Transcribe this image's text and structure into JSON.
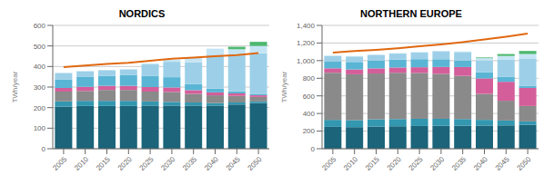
{
  "chart_data": [
    {
      "type": "bar",
      "title": "NORDICS",
      "ylabel": "TWh/year",
      "stacked": true,
      "grid": true,
      "categories": [
        "2005",
        "2010",
        "2015",
        "2020",
        "2025",
        "2030",
        "2035",
        "2040",
        "2045",
        "2050"
      ],
      "ylim": [
        0,
        600
      ],
      "yticks": [
        0,
        100,
        200,
        300,
        400,
        500,
        600
      ],
      "series": [
        {
          "color": "#1b647a",
          "values": [
            205,
            208,
            208,
            208,
            210,
            210,
            210,
            210,
            215,
            222
          ]
        },
        {
          "color": "#3397b0",
          "values": [
            25,
            25,
            25,
            25,
            20,
            18,
            15,
            12,
            10,
            8
          ]
        },
        {
          "color": "#8a8a8a",
          "values": [
            48,
            48,
            53,
            53,
            48,
            48,
            42,
            38,
            32,
            22
          ]
        },
        {
          "color": "#d45e9a",
          "values": [
            18,
            20,
            20,
            20,
            22,
            22,
            18,
            14,
            12,
            8
          ]
        },
        {
          "color": "#5ab5d5",
          "values": [
            42,
            48,
            48,
            52,
            55,
            50,
            30,
            18,
            10,
            5
          ]
        },
        {
          "color": "#9dd0e8",
          "values": [
            30,
            28,
            28,
            28,
            55,
            75,
            105,
            165,
            175,
            200
          ]
        },
        {
          "color": "#c5e5f5",
          "values": [
            0,
            0,
            0,
            0,
            5,
            10,
            25,
            30,
            30,
            35
          ]
        },
        {
          "color": "#4db870",
          "values": [
            0,
            0,
            0,
            0,
            0,
            0,
            0,
            0,
            12,
            20
          ]
        },
        {
          "type": "line",
          "color": "#e06810",
          "values": [
            397,
            405,
            412,
            418,
            428,
            438,
            443,
            450,
            456,
            465
          ]
        }
      ]
    },
    {
      "type": "bar",
      "title": "NORTHERN EUROPE",
      "ylabel": "TWh/year",
      "stacked": true,
      "grid": true,
      "categories": [
        "2005",
        "2010",
        "2015",
        "2020",
        "2025",
        "2030",
        "2035",
        "2040",
        "2045",
        "2050"
      ],
      "ylim": [
        0,
        1400
      ],
      "yticks": [
        0,
        200,
        400,
        600,
        800,
        {
          "value": 1000,
          "label": "1,000"
        },
        {
          "value": 1200,
          "label": "1,200"
        },
        {
          "value": 1400,
          "label": "1,400"
        }
      ],
      "series": [
        {
          "color": "#1b647a",
          "values": [
            248,
            245,
            252,
            255,
            258,
            260,
            262,
            263,
            265,
            270
          ]
        },
        {
          "color": "#3397b0",
          "values": [
            80,
            80,
            82,
            82,
            82,
            80,
            75,
            65,
            55,
            40
          ]
        },
        {
          "color": "#8a8a8a",
          "values": [
            535,
            520,
            520,
            525,
            520,
            510,
            490,
            295,
            225,
            175
          ]
        },
        {
          "color": "#d45e9a",
          "values": [
            50,
            55,
            58,
            60,
            65,
            78,
            100,
            175,
            215,
            205
          ]
        },
        {
          "color": "#5ab5d5",
          "values": [
            80,
            85,
            88,
            90,
            92,
            88,
            75,
            70,
            58,
            25
          ]
        },
        {
          "color": "#9dd0e8",
          "values": [
            60,
            62,
            65,
            68,
            75,
            90,
            95,
            135,
            195,
            310
          ]
        },
        {
          "color": "#c5e5f5",
          "values": [
            5,
            5,
            5,
            5,
            5,
            5,
            8,
            25,
            40,
            50
          ]
        },
        {
          "color": "#4db870",
          "values": [
            0,
            0,
            0,
            0,
            0,
            0,
            0,
            8,
            22,
            35
          ]
        },
        {
          "type": "line",
          "color": "#e06810",
          "values": [
            1092,
            1108,
            1122,
            1140,
            1162,
            1185,
            1210,
            1240,
            1272,
            1308
          ]
        }
      ]
    }
  ]
}
